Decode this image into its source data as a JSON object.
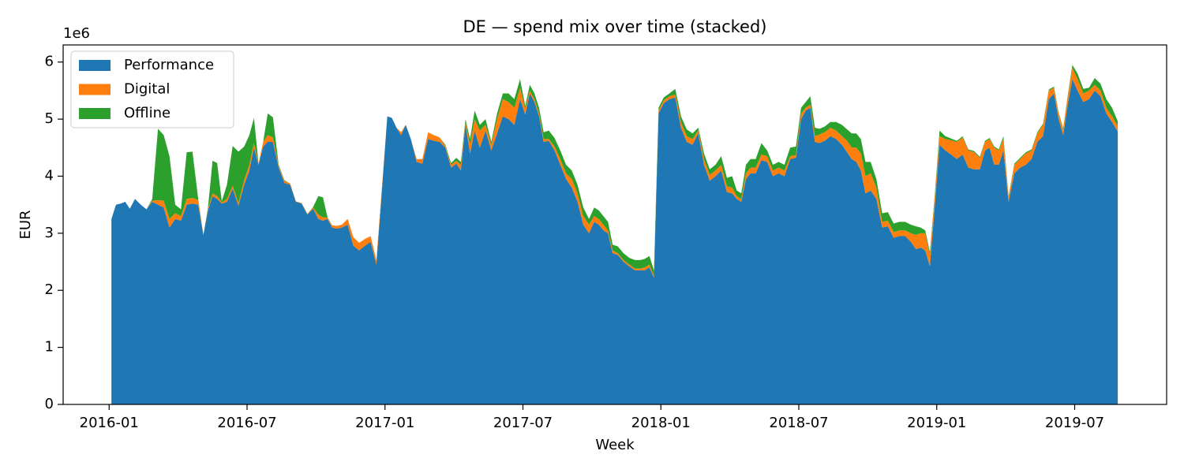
{
  "chart_data": {
    "type": "stacked_area",
    "title": "DE — spend mix over time (stacked)",
    "xlabel": "Week",
    "ylabel": "EUR",
    "y_offset_label": "1e6",
    "legend": "upper left",
    "xlim": [
      "2015-11",
      "2019-11"
    ],
    "xticks": [
      "2016-01",
      "2016-07",
      "2017-01",
      "2017-07",
      "2018-01",
      "2018-07",
      "2019-01",
      "2019-07"
    ],
    "ylim": [
      0,
      6.3
    ],
    "yticks": [
      0,
      1,
      2,
      3,
      4,
      5,
      6
    ],
    "x": [
      "2016-01",
      "2016-01",
      "2016-01",
      "2016-01",
      "2016-01",
      "2016-02",
      "2016-02",
      "2016-02",
      "2016-02",
      "2016-03",
      "2016-03",
      "2016-03",
      "2016-03",
      "2016-04",
      "2016-04",
      "2016-04",
      "2016-04",
      "2016-05",
      "2016-05",
      "2016-05",
      "2016-05",
      "2016-05",
      "2016-06",
      "2016-06",
      "2016-06",
      "2016-06",
      "2016-07",
      "2016-07",
      "2016-07",
      "2016-07",
      "2016-07",
      "2016-08",
      "2016-08",
      "2016-08",
      "2016-08",
      "2016-09",
      "2016-09",
      "2016-09",
      "2016-09",
      "2016-10",
      "2016-10",
      "2016-10",
      "2016-10",
      "2016-10",
      "2016-11",
      "2016-11",
      "2016-11",
      "2016-11",
      "2016-12",
      "2016-12",
      "2016-12",
      "2016-12",
      "2017-01",
      "2017-01",
      "2017-01",
      "2017-01",
      "2017-01",
      "2017-02",
      "2017-02",
      "2017-02",
      "2017-02",
      "2017-03",
      "2017-03",
      "2017-03",
      "2017-03",
      "2017-04",
      "2017-04",
      "2017-04",
      "2017-04",
      "2017-04",
      "2017-05",
      "2017-05",
      "2017-05",
      "2017-05",
      "2017-06",
      "2017-06",
      "2017-06",
      "2017-06",
      "2017-07",
      "2017-07",
      "2017-07",
      "2017-07",
      "2017-07",
      "2017-08",
      "2017-08",
      "2017-08",
      "2017-08",
      "2017-09",
      "2017-09",
      "2017-09",
      "2017-09",
      "2017-10",
      "2017-10",
      "2017-10",
      "2017-10",
      "2017-10",
      "2017-11",
      "2017-11",
      "2017-11",
      "2017-11",
      "2017-12",
      "2017-12",
      "2017-12",
      "2017-12",
      "2017-12",
      "2018-01",
      "2018-01",
      "2018-01",
      "2018-01",
      "2018-02",
      "2018-02",
      "2018-02",
      "2018-02",
      "2018-03",
      "2018-03",
      "2018-03",
      "2018-03",
      "2018-04",
      "2018-04",
      "2018-04",
      "2018-04",
      "2018-04",
      "2018-05",
      "2018-05",
      "2018-05",
      "2018-05",
      "2018-06",
      "2018-06",
      "2018-06",
      "2018-06",
      "2018-07",
      "2018-07",
      "2018-07",
      "2018-07",
      "2018-07",
      "2018-08",
      "2018-08",
      "2018-08",
      "2018-08",
      "2018-09",
      "2018-09",
      "2018-09",
      "2018-09",
      "2018-09",
      "2018-10",
      "2018-10",
      "2018-10",
      "2018-10",
      "2018-11",
      "2018-11",
      "2018-11",
      "2018-11",
      "2018-12",
      "2018-12",
      "2018-12",
      "2018-12",
      "2018-12",
      "2019-01",
      "2019-01",
      "2019-01",
      "2019-01",
      "2019-02",
      "2019-02",
      "2019-02",
      "2019-02",
      "2019-03",
      "2019-03",
      "2019-03",
      "2019-03",
      "2019-03",
      "2019-04",
      "2019-04",
      "2019-04",
      "2019-04",
      "2019-05",
      "2019-05",
      "2019-05",
      "2019-05",
      "2019-06",
      "2019-06",
      "2019-06",
      "2019-06",
      "2019-06",
      "2019-07",
      "2019-07",
      "2019-07",
      "2019-07",
      "2019-08",
      "2019-08",
      "2019-08",
      "2019-08"
    ],
    "series": [
      {
        "name": "Performance",
        "color": "#1f77b4",
        "values": [
          3.25,
          3.5,
          3.52,
          3.55,
          3.43,
          3.6,
          3.5,
          3.42,
          3.55,
          3.5,
          3.45,
          3.1,
          3.25,
          3.22,
          3.5,
          3.52,
          3.5,
          2.97,
          3.4,
          3.65,
          3.6,
          3.52,
          3.55,
          3.78,
          3.48,
          3.85,
          4.1,
          4.5,
          4.2,
          4.52,
          4.6,
          4.6,
          4.15,
          3.88,
          3.85,
          3.55,
          3.52,
          3.33,
          3.43,
          3.25,
          3.22,
          3.25,
          3.1,
          3.08,
          3.1,
          3.15,
          2.78,
          2.7,
          2.78,
          2.85,
          2.45,
          3.8,
          5.05,
          5.02,
          4.85,
          4.72,
          4.9,
          4.65,
          4.25,
          4.22,
          4.65,
          4.62,
          4.6,
          4.5,
          4.15,
          4.22,
          4.1,
          4.9,
          4.4,
          4.8,
          4.5,
          4.8,
          4.45,
          4.75,
          5.05,
          5.0,
          4.9,
          5.35,
          5.08,
          5.45,
          5.3,
          5.05,
          4.6,
          4.62,
          4.45,
          4.2,
          3.95,
          3.8,
          3.55,
          3.15,
          3.0,
          3.2,
          3.15,
          3.05,
          3.0,
          2.65,
          2.62,
          2.5,
          2.42,
          2.35,
          2.35,
          2.35,
          2.4,
          2.22,
          5.1,
          5.28,
          5.35,
          5.38,
          4.85,
          4.6,
          4.55,
          4.75,
          4.2,
          3.92,
          4.0,
          4.1,
          3.72,
          3.7,
          3.6,
          3.55,
          3.95,
          4.05,
          4.05,
          4.28,
          4.25,
          4.0,
          4.05,
          4.0,
          4.3,
          4.32,
          5.0,
          5.15,
          5.2,
          4.6,
          4.58,
          4.62,
          4.7,
          4.65,
          4.55,
          4.42,
          4.3,
          4.25,
          4.1,
          3.7,
          3.75,
          3.6,
          3.1,
          3.12,
          2.92,
          2.95,
          2.95,
          2.85,
          2.72,
          2.75,
          2.7,
          2.42,
          3.4,
          4.55,
          4.45,
          4.38,
          4.3,
          4.38,
          4.15,
          4.12,
          4.12,
          4.45,
          4.5,
          4.2,
          4.2,
          4.45,
          3.55,
          4.05,
          4.15,
          4.2,
          4.3,
          4.6,
          4.7,
          5.35,
          5.45,
          5.0,
          4.72,
          5.25,
          5.7,
          5.5,
          5.3,
          5.35,
          5.5,
          5.4,
          5.1,
          4.95,
          4.78
        ]
      },
      {
        "name": "Digital",
        "color": "#ff7f0e",
        "values": [
          0,
          0,
          0,
          0,
          0,
          0,
          0,
          0,
          0.02,
          0.08,
          0.12,
          0.15,
          0.1,
          0.08,
          0.1,
          0.1,
          0.08,
          0,
          0.03,
          0.05,
          0.05,
          0.02,
          0.05,
          0.05,
          0.05,
          0.08,
          0.1,
          0.08,
          0.02,
          0.08,
          0.12,
          0.08,
          0.03,
          0.04,
          0.02,
          0.01,
          0.01,
          0.01,
          0.02,
          0.08,
          0.06,
          0.02,
          0.04,
          0.05,
          0.05,
          0.1,
          0.15,
          0.13,
          0.12,
          0.1,
          0.08,
          0.05,
          0,
          0,
          0,
          0.05,
          0,
          0,
          0.05,
          0.08,
          0.12,
          0.1,
          0.08,
          0.03,
          0.05,
          0.05,
          0.1,
          0.05,
          0.15,
          0.2,
          0.3,
          0.1,
          0.1,
          0.25,
          0.3,
          0.3,
          0.3,
          0.2,
          0.1,
          0.05,
          0.05,
          0.05,
          0.05,
          0.03,
          0.07,
          0.1,
          0.1,
          0.15,
          0.15,
          0.15,
          0.15,
          0.1,
          0.1,
          0.1,
          0.05,
          0.05,
          0.03,
          0.03,
          0.03,
          0.03,
          0.03,
          0.05,
          0.05,
          0.03,
          0.05,
          0.05,
          0.05,
          0.05,
          0.1,
          0.1,
          0.1,
          0.05,
          0.1,
          0.1,
          0.1,
          0.1,
          0.1,
          0.1,
          0.05,
          0.05,
          0.1,
          0.1,
          0.1,
          0.1,
          0.1,
          0.1,
          0.1,
          0.1,
          0.05,
          0.05,
          0.1,
          0.05,
          0.05,
          0.1,
          0.15,
          0.15,
          0.15,
          0.15,
          0.15,
          0.2,
          0.2,
          0.25,
          0.3,
          0.3,
          0.3,
          0.2,
          0.1,
          0.1,
          0.1,
          0.1,
          0.1,
          0.15,
          0.25,
          0.25,
          0.3,
          0.2,
          0.15,
          0.15,
          0.2,
          0.25,
          0.3,
          0.3,
          0.3,
          0.3,
          0.2,
          0.15,
          0.15,
          0.3,
          0.25,
          0.2,
          0.08,
          0.15,
          0.15,
          0.2,
          0.15,
          0.15,
          0.2,
          0.15,
          0.1,
          0.1,
          0.1,
          0.15,
          0.2,
          0.2,
          0.15,
          0.15,
          0.1,
          0.1,
          0.1,
          0.1,
          0.1
        ]
      },
      {
        "name": "Offline",
        "color": "#2ca02c",
        "values": [
          0,
          0,
          0,
          0,
          0,
          0,
          0,
          0,
          0.03,
          1.25,
          1.15,
          1.1,
          0.15,
          0.12,
          0.82,
          0.81,
          0.02,
          0,
          0.02,
          0.57,
          0.58,
          0.02,
          0.25,
          0.7,
          0.9,
          0.59,
          0.52,
          0.44,
          0,
          0,
          0.38,
          0.35,
          0.02,
          0.01,
          0,
          0,
          0,
          0,
          0.01,
          0.32,
          0.35,
          0.01,
          0,
          0,
          0,
          0,
          0,
          0,
          0,
          0,
          0,
          0,
          0,
          0,
          0,
          0,
          0,
          0,
          0,
          0,
          0,
          0,
          0,
          0.02,
          0.03,
          0.05,
          0.05,
          0.05,
          0.1,
          0.15,
          0.1,
          0.1,
          0.05,
          0.1,
          0.1,
          0.15,
          0.15,
          0.15,
          0.05,
          0.1,
          0.1,
          0.1,
          0.12,
          0.15,
          0.15,
          0.15,
          0.15,
          0.15,
          0.15,
          0.15,
          0.1,
          0.15,
          0.15,
          0.15,
          0.15,
          0.1,
          0.12,
          0.12,
          0.12,
          0.15,
          0.15,
          0.15,
          0.15,
          0.1,
          0.05,
          0.05,
          0.05,
          0.1,
          0.1,
          0.12,
          0.1,
          0.05,
          0.1,
          0.1,
          0.1,
          0.15,
          0.15,
          0.2,
          0.1,
          0.1,
          0.15,
          0.15,
          0.15,
          0.2,
          0.1,
          0.1,
          0.1,
          0.1,
          0.15,
          0.15,
          0.1,
          0.1,
          0.15,
          0.15,
          0.1,
          0.1,
          0.1,
          0.15,
          0.2,
          0.2,
          0.25,
          0.25,
          0.25,
          0.25,
          0.2,
          0.15,
          0.15,
          0.15,
          0.15,
          0.15,
          0.15,
          0.15,
          0.15,
          0.1,
          0.05,
          0.05,
          0.05,
          0.1,
          0.05,
          0.03,
          0.02,
          0.02,
          0.02,
          0.02,
          0.02,
          0.02,
          0.02,
          0.02,
          0.02,
          0.05,
          0.02,
          0.02,
          0.02,
          0.02,
          0.02,
          0.02,
          0.02,
          0.02,
          0.02,
          0.02,
          0.02,
          0.02,
          0.05,
          0.1,
          0.08,
          0.05,
          0.12,
          0.12,
          0.15,
          0.15,
          0.08
        ]
      }
    ]
  }
}
